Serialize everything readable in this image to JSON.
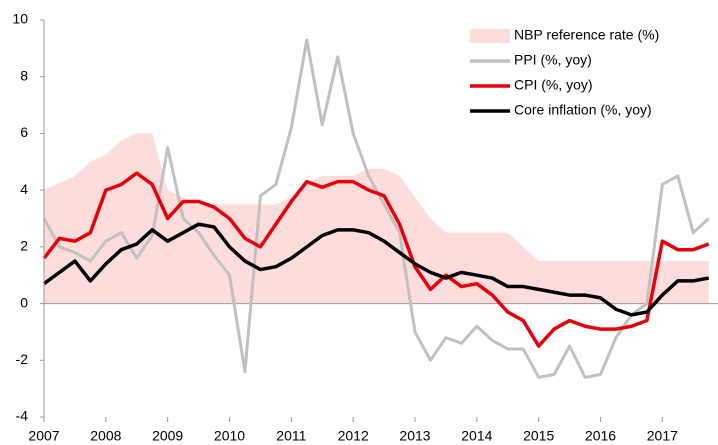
{
  "chart_data": {
    "type": "line",
    "x": [
      2007,
      2007.25,
      2007.5,
      2007.75,
      2008,
      2008.25,
      2008.5,
      2008.75,
      2009,
      2009.25,
      2009.5,
      2009.75,
      2010,
      2010.25,
      2010.5,
      2010.75,
      2011,
      2011.25,
      2011.5,
      2011.75,
      2012,
      2012.25,
      2012.5,
      2012.75,
      2013,
      2013.25,
      2013.5,
      2013.75,
      2014,
      2014.25,
      2014.5,
      2014.75,
      2015,
      2015.25,
      2015.5,
      2015.75,
      2016,
      2016.25,
      2016.5,
      2016.75,
      2017,
      2017.25,
      2017.5,
      2017.75
    ],
    "series": [
      {
        "name": "NBP reference rate (%)",
        "style": "area",
        "color": "#fddcdc",
        "values": [
          4.0,
          4.25,
          4.5,
          5.0,
          5.25,
          5.75,
          6.0,
          6.0,
          4.0,
          3.75,
          3.5,
          3.5,
          3.5,
          3.5,
          3.5,
          3.5,
          3.75,
          4.25,
          4.5,
          4.5,
          4.5,
          4.75,
          4.75,
          4.5,
          3.75,
          3.0,
          2.5,
          2.5,
          2.5,
          2.5,
          2.5,
          2.0,
          1.5,
          1.5,
          1.5,
          1.5,
          1.5,
          1.5,
          1.5,
          1.5,
          1.5,
          1.5,
          1.5,
          1.5
        ]
      },
      {
        "name": "PPI (%, yoy)",
        "style": "line",
        "color": "#c0c0c0",
        "values": [
          3.0,
          2.0,
          1.8,
          1.5,
          2.2,
          2.5,
          1.6,
          2.4,
          5.5,
          3.0,
          2.5,
          1.7,
          1.0,
          -2.4,
          3.8,
          4.2,
          6.2,
          9.3,
          6.3,
          8.7,
          6.0,
          4.5,
          3.5,
          2.5,
          -1.0,
          -2.0,
          -1.2,
          -1.4,
          -0.8,
          -1.3,
          -1.6,
          -1.6,
          -2.6,
          -2.5,
          -1.5,
          -2.6,
          -2.5,
          -1.2,
          -0.4,
          0.0,
          4.2,
          4.5,
          2.5,
          3.0
        ]
      },
      {
        "name": "CPI (%, yoy)",
        "style": "line",
        "color": "#e8000b",
        "values": [
          1.6,
          2.3,
          2.2,
          2.5,
          4.0,
          4.2,
          4.6,
          4.2,
          3.0,
          3.6,
          3.6,
          3.4,
          3.0,
          2.3,
          2.0,
          2.8,
          3.6,
          4.3,
          4.1,
          4.3,
          4.3,
          4.0,
          3.8,
          2.8,
          1.3,
          0.5,
          1.0,
          0.6,
          0.7,
          0.3,
          -0.3,
          -0.6,
          -1.5,
          -0.9,
          -0.6,
          -0.8,
          -0.9,
          -0.9,
          -0.8,
          -0.6,
          2.2,
          1.9,
          1.9,
          2.1
        ]
      },
      {
        "name": "Core inflation (%, yoy)",
        "style": "line",
        "color": "#000000",
        "values": [
          0.7,
          1.1,
          1.5,
          0.8,
          1.4,
          1.9,
          2.1,
          2.6,
          2.2,
          2.5,
          2.8,
          2.7,
          2.0,
          1.5,
          1.2,
          1.3,
          1.6,
          2.0,
          2.4,
          2.6,
          2.6,
          2.5,
          2.2,
          1.8,
          1.4,
          1.1,
          0.9,
          1.1,
          1.0,
          0.9,
          0.6,
          0.6,
          0.5,
          0.4,
          0.3,
          0.3,
          0.2,
          -0.2,
          -0.4,
          -0.3,
          0.3,
          0.8,
          0.8,
          0.9
        ]
      }
    ],
    "xlim": [
      2007,
      2017.9
    ],
    "xticks": [
      2007,
      2008,
      2009,
      2010,
      2011,
      2012,
      2013,
      2014,
      2015,
      2016,
      2017
    ],
    "ylim": [
      -4,
      10
    ],
    "yticks": [
      -4,
      -2,
      0,
      2,
      4,
      6,
      8,
      10
    ],
    "grid": false,
    "legend": "top-right"
  }
}
